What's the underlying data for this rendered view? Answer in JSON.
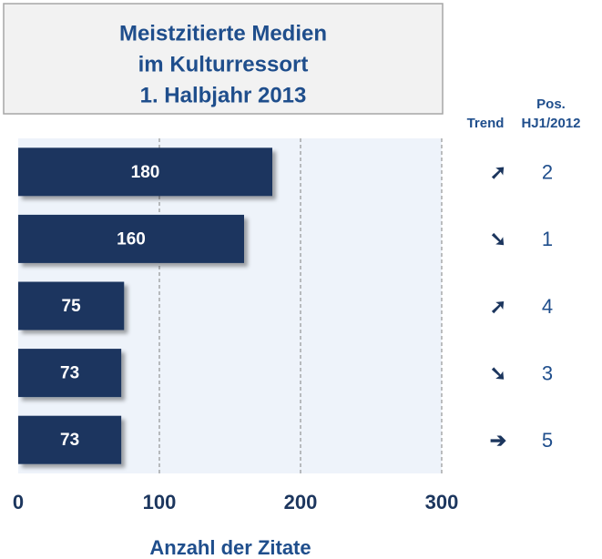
{
  "chart_data": {
    "type": "barh",
    "title": [
      "Meistzitierte Medien",
      "im Kulturressort",
      "1. Halbjahr 2013"
    ],
    "categories": [
      null,
      null,
      null,
      null,
      null
    ],
    "values": [
      180,
      160,
      75,
      73,
      73
    ],
    "color": "#1c365e",
    "xlim": [
      0,
      300
    ],
    "xticks": [
      0,
      100,
      200,
      300
    ],
    "grid": true,
    "xlabel": "Anzahl der Zitate",
    "trend_label": "Trend",
    "trend": [
      "➚",
      "➘",
      "➚",
      "➘",
      "➔"
    ],
    "previous_position_label": [
      "Pos.",
      "HJ1/2012"
    ],
    "previous_position": [
      2,
      1,
      4,
      3,
      5
    ]
  }
}
